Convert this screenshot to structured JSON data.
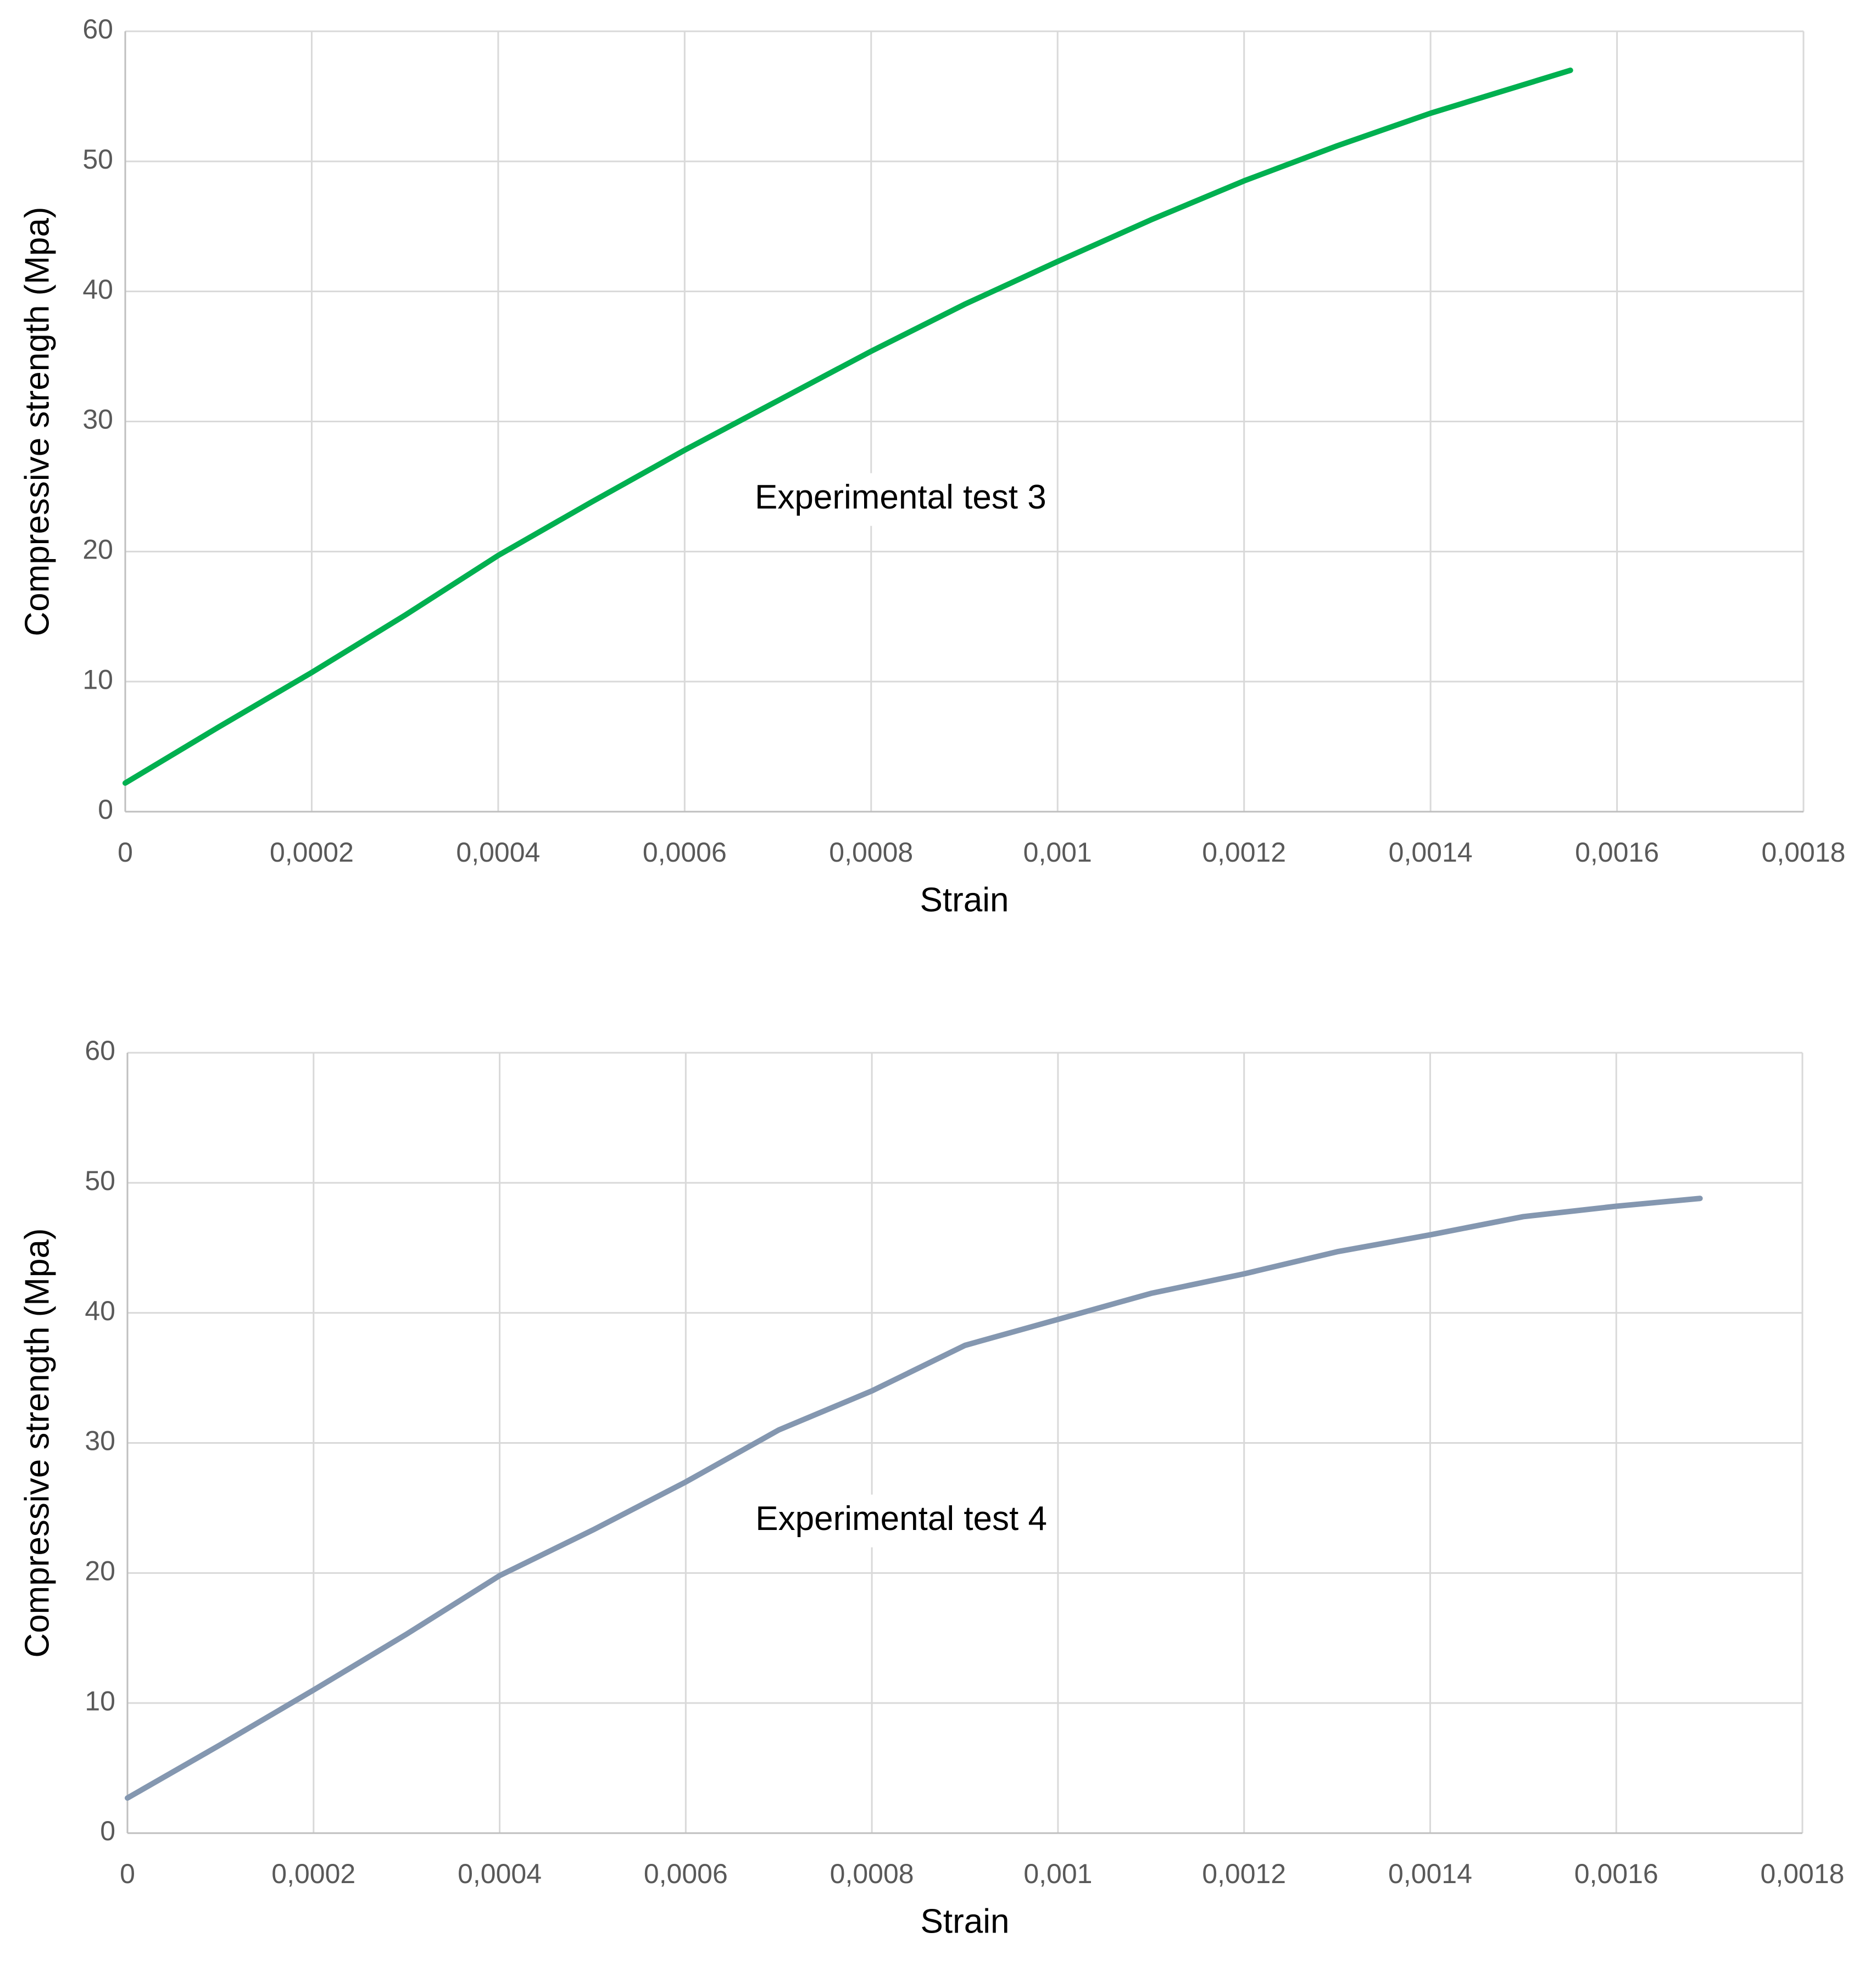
{
  "chart_data": [
    {
      "type": "line",
      "xlabel": "Strain",
      "ylabel": "Compressive strength (Mpa)",
      "grid": true,
      "xlim": [
        0,
        0.0018
      ],
      "ylim": [
        0,
        60
      ],
      "xticks": [
        0,
        {
          "value": 0.0002,
          "label": "0,0002"
        },
        {
          "value": 0.0004,
          "label": "0,0004"
        },
        {
          "value": 0.0006,
          "label": "0,0006"
        },
        {
          "value": 0.0008,
          "label": "0,0008"
        },
        {
          "value": 0.001,
          "label": "0,001"
        },
        {
          "value": 0.0012,
          "label": "0,0012"
        },
        {
          "value": 0.0014,
          "label": "0,0014"
        },
        {
          "value": 0.0016,
          "label": "0,0016"
        },
        {
          "value": 0.0018,
          "label": "0,0018"
        }
      ],
      "yticks": [
        0,
        10,
        20,
        30,
        40,
        50,
        60
      ],
      "x": [
        0,
        0.0001,
        0.0002,
        0.0003,
        0.0004,
        0.0005,
        0.0006,
        0.0007,
        0.0008,
        0.0009,
        0.001,
        0.0011,
        0.0012,
        0.0013,
        0.0014,
        0.00155
      ],
      "series": [
        {
          "name": "Experimental test 3",
          "color": "#00b050",
          "values": [
            2.2,
            6.5,
            10.7,
            15.1,
            19.7,
            23.8,
            27.8,
            31.6,
            35.4,
            39.0,
            42.3,
            45.5,
            48.5,
            51.2,
            53.7,
            57.0
          ]
        }
      ]
    },
    {
      "type": "line",
      "xlabel": "Strain",
      "ylabel": "Compressive strength (Mpa)",
      "grid": true,
      "xlim": [
        0,
        0.0018
      ],
      "ylim": [
        0,
        60
      ],
      "xticks": [
        0,
        {
          "value": 0.0002,
          "label": "0,0002"
        },
        {
          "value": 0.0004,
          "label": "0,0004"
        },
        {
          "value": 0.0006,
          "label": "0,0006"
        },
        {
          "value": 0.0008,
          "label": "0,0008"
        },
        {
          "value": 0.001,
          "label": "0,001"
        },
        {
          "value": 0.0012,
          "label": "0,0012"
        },
        {
          "value": 0.0014,
          "label": "0,0014"
        },
        {
          "value": 0.0016,
          "label": "0,0016"
        },
        {
          "value": 0.0018,
          "label": "0,0018"
        }
      ],
      "yticks": [
        0,
        10,
        20,
        30,
        40,
        50,
        60
      ],
      "x": [
        0,
        0.0001,
        0.0002,
        0.0003,
        0.0004,
        0.0005,
        0.0006,
        0.0007,
        0.0008,
        0.0009,
        0.001,
        0.0011,
        0.0012,
        0.0013,
        0.0014,
        0.0015,
        0.0016,
        0.00169
      ],
      "series": [
        {
          "name": "Experimental test 4",
          "color": "#8497b0",
          "values": [
            2.7,
            6.8,
            11.0,
            15.3,
            19.8,
            23.3,
            27.0,
            31.0,
            34.0,
            37.5,
            39.5,
            41.5,
            43.0,
            44.7,
            46.0,
            47.4,
            48.2,
            48.8
          ]
        }
      ]
    }
  ]
}
